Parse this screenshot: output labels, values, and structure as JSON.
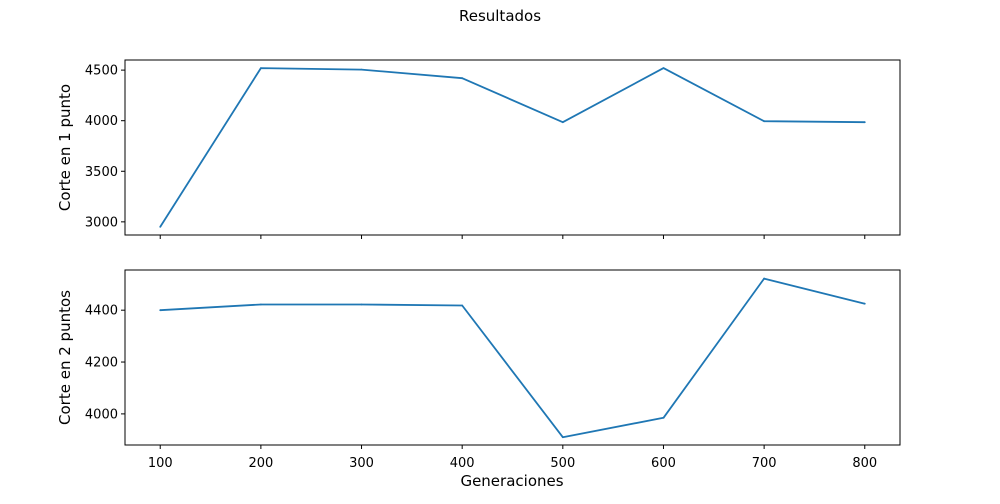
{
  "figure": {
    "title": "Resultados",
    "xlabel": "Generaciones"
  },
  "chart_data": [
    {
      "type": "line",
      "ylabel": "Corte en 1 punto",
      "x": [
        100,
        200,
        300,
        400,
        500,
        600,
        700,
        800
      ],
      "series": [
        {
          "values": [
            2950,
            4520,
            4505,
            4420,
            3985,
            4520,
            3995,
            3985
          ],
          "color": "#1f77b4"
        }
      ],
      "xticks": [
        100,
        200,
        300,
        400,
        500,
        600,
        700,
        800
      ],
      "xlim": [
        65,
        835
      ],
      "yticks": [
        3000,
        3500,
        4000,
        4500
      ],
      "ylim": [
        2870,
        4600
      ],
      "grid": false,
      "show_xtick_labels": false
    },
    {
      "type": "line",
      "ylabel": "Corte en 2 puntos",
      "x": [
        100,
        200,
        300,
        400,
        500,
        600,
        700,
        800
      ],
      "series": [
        {
          "values": [
            4400,
            4422,
            4422,
            4418,
            3910,
            3985,
            4522,
            4425
          ],
          "color": "#1f77b4"
        }
      ],
      "xticks": [
        100,
        200,
        300,
        400,
        500,
        600,
        700,
        800
      ],
      "xlim": [
        65,
        835
      ],
      "yticks": [
        4000,
        4200,
        4400
      ],
      "ylim": [
        3880,
        4555
      ],
      "grid": false,
      "show_xtick_labels": true
    }
  ]
}
